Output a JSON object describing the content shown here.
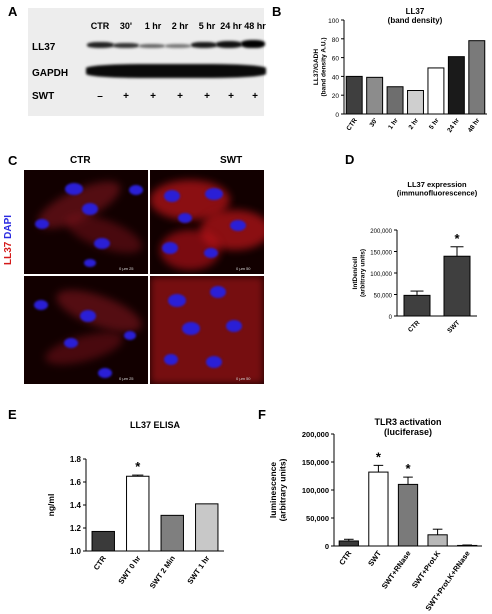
{
  "panels": {
    "a": "A",
    "b": "B",
    "c": "C",
    "d": "D",
    "e": "E",
    "f": "F"
  },
  "blot": {
    "lanes": [
      "CTR",
      "30'",
      "1 hr",
      "2 hr",
      "5 hr",
      "24 hr",
      "48 hr"
    ],
    "signs": [
      "–",
      "+",
      "+",
      "+",
      "+",
      "+",
      "+"
    ],
    "rows": [
      "LL37",
      "GAPDH",
      "SWT"
    ]
  },
  "microscopy": {
    "col_ctr": "CTR",
    "col_swt": "SWT",
    "stain_ll37": "LL37",
    "stain_dapi": "DAPI",
    "scale_ctr": "0    μm   25",
    "scale_swt": "0    μm   50"
  },
  "chart_data": [
    {
      "id": "B",
      "type": "bar",
      "title": "LL37",
      "subtitle": "(band density)",
      "ylabel": "LL37/GADH (band density A.U.)",
      "xlabel": "",
      "categories": [
        "CTR",
        "30'",
        "1 hr",
        "2 hr",
        "5 hr",
        "24 hr",
        "48 hr"
      ],
      "values": [
        40,
        39,
        29,
        25,
        49,
        61,
        78
      ],
      "colors": [
        "#3f3f3f",
        "#8c8c8c",
        "#6e6e6e",
        "#cfcfcf",
        "#ffffff",
        "#1a1a1a",
        "#7a7a7a"
      ],
      "ylim": [
        0,
        100
      ],
      "yticks": [
        0,
        20,
        40,
        60,
        80,
        100
      ],
      "grid": false
    },
    {
      "id": "D",
      "type": "bar",
      "title": "LL37 expression",
      "subtitle": "(immunofluorescence)",
      "ylabel": "IntDen/cell (arbitrary units)",
      "xlabel": "",
      "categories": [
        "CTR",
        "SWT"
      ],
      "values": [
        48000,
        139000
      ],
      "errors": [
        10000,
        22000
      ],
      "colors": [
        "#3f3f3f",
        "#3f3f3f"
      ],
      "ylim": [
        0,
        200000
      ],
      "yticks": [
        0,
        50000,
        100000,
        150000,
        200000
      ],
      "ytick_labels": [
        "0",
        "50,000",
        "100,000",
        "150,000",
        "200,000"
      ],
      "annotations": [
        "",
        "*"
      ],
      "grid": false
    },
    {
      "id": "E",
      "type": "bar",
      "title": "LL37 ELISA",
      "ylabel": "ng/ml",
      "xlabel": "",
      "categories": [
        "CTR",
        "SWT 0 hr",
        "SWT 2 Min",
        "SWT 1 hr"
      ],
      "values": [
        1.17,
        1.65,
        1.31,
        1.41
      ],
      "errors": [
        0,
        0.01,
        0,
        0
      ],
      "colors": [
        "#3a3a3a",
        "#ffffff",
        "#7f7f7f",
        "#c8c8c8"
      ],
      "ylim": [
        1.0,
        1.8
      ],
      "yticks": [
        1.0,
        1.2,
        1.4,
        1.6,
        1.8
      ],
      "ytick_labels": [
        "1.0",
        "1.2",
        "1.4",
        "1.6",
        "1.8"
      ],
      "annotations": [
        "",
        "*",
        "",
        ""
      ],
      "grid": false
    },
    {
      "id": "F",
      "type": "bar",
      "title": "TLR3 activation",
      "subtitle": "(luciferase)",
      "ylabel": "luminescence (arbitrary units)",
      "xlabel": "",
      "categories": [
        "CTR",
        "SWT",
        "SWT+RNase",
        "SWT+Prot.K",
        "SWT+Prot.K+RNase"
      ],
      "values": [
        9000,
        132000,
        110000,
        20000,
        1000
      ],
      "errors": [
        3000,
        12000,
        13000,
        10000,
        800
      ],
      "colors": [
        "#3a3a3a",
        "#ffffff",
        "#7a7a7a",
        "#b8b8b8",
        "#ffffff"
      ],
      "ylim": [
        0,
        200000
      ],
      "yticks": [
        0,
        50000,
        100000,
        150000,
        200000
      ],
      "ytick_labels": [
        "0",
        "50,000",
        "100,000",
        "150,000",
        "200,000"
      ],
      "annotations": [
        "",
        "*",
        "*",
        "",
        ""
      ],
      "grid": false
    }
  ]
}
